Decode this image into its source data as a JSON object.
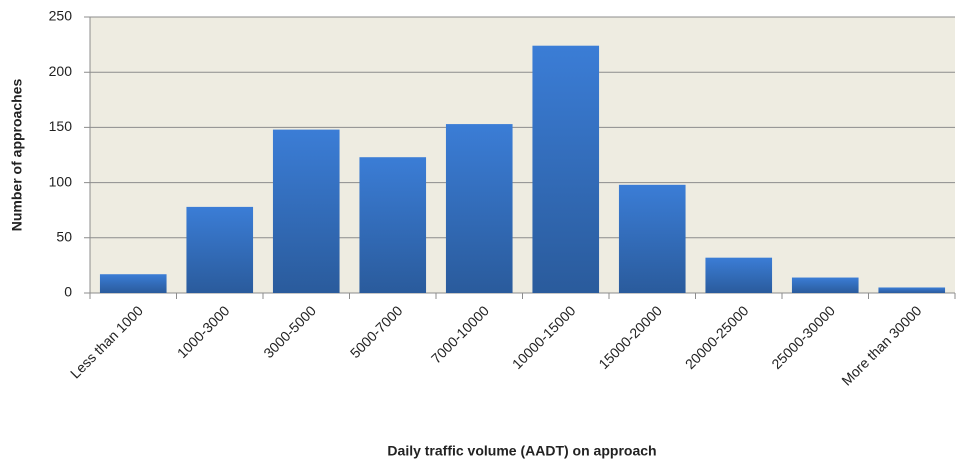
{
  "chart_data": {
    "type": "bar",
    "x_label": "Daily traffic volume (AADT) on approach",
    "y_label": "Number of approaches",
    "categories": [
      "Less than 1000",
      "1000-3000",
      "3000-5000",
      "5000-7000",
      "7000-10000",
      "10000-15000",
      "15000-20000",
      "20000-25000",
      "25000-30000",
      "More than 30000"
    ],
    "values": [
      17,
      78,
      148,
      123,
      153,
      224,
      98,
      32,
      14,
      5
    ],
    "color": "#3b7dd6",
    "ylim": [
      0,
      250
    ],
    "yticks": [
      0,
      50,
      100,
      150,
      200,
      250
    ],
    "grid": true
  }
}
